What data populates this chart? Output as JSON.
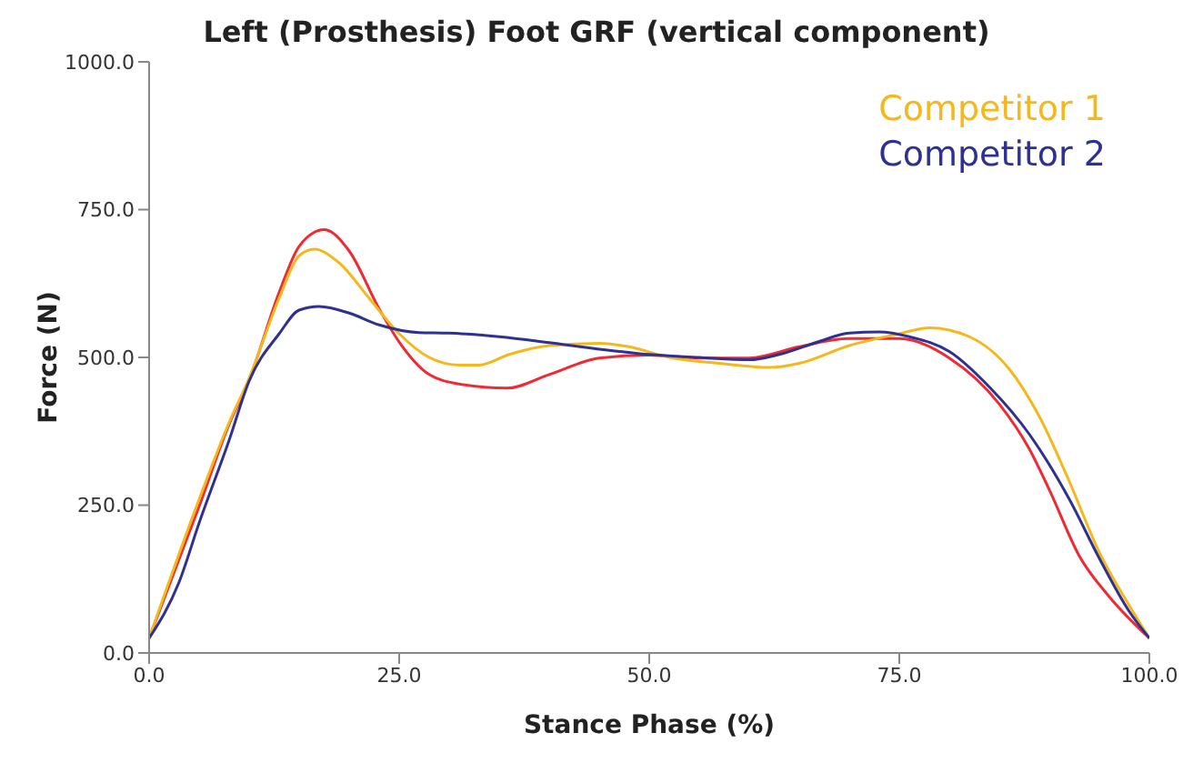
{
  "chart_data": {
    "type": "line",
    "title": "Left (Prosthesis) Foot GRF (vertical component)",
    "xlabel": "Stance Phase (%)",
    "ylabel": "Force (N)",
    "xlim": [
      0,
      100
    ],
    "ylim": [
      0,
      1000
    ],
    "xticks": [
      {
        "value": 0,
        "label": "0.0"
      },
      {
        "value": 25,
        "label": "25.0"
      },
      {
        "value": 50,
        "label": "50.0"
      },
      {
        "value": 75,
        "label": "75.0"
      },
      {
        "value": 100,
        "label": "100.0"
      }
    ],
    "yticks": [
      {
        "value": 0,
        "label": "0.0"
      },
      {
        "value": 250,
        "label": "250.0"
      },
      {
        "value": 500,
        "label": "500.0"
      },
      {
        "value": 750,
        "label": "750.0"
      },
      {
        "value": 1000,
        "label": "1000.0"
      }
    ],
    "grid": false,
    "legend": "top right",
    "marker": "none",
    "line_style": "solid",
    "series": [
      {
        "color": "#ee2b34",
        "x": [
          0,
          5,
          8,
          10,
          13,
          15,
          17.5,
          20,
          23,
          25,
          28,
          31,
          35.8,
          40,
          45,
          50,
          55,
          60,
          65,
          70,
          75,
          80,
          85,
          88,
          90,
          93,
          96,
          100
        ],
        "values": [
          25,
          248,
          387,
          462,
          610,
          688,
          716,
          680,
          582,
          526,
          471,
          455,
          448,
          471,
          499,
          504,
          499,
          499,
          518,
          532,
          532,
          499,
          421,
          345,
          276,
          164,
          95,
          25
        ]
      },
      {
        "name": "Competitor 1",
        "color": "#f5b81c",
        "x": [
          0,
          5,
          8,
          10,
          13,
          15,
          16.5,
          19,
          22,
          25,
          28,
          31,
          33,
          36,
          40,
          45,
          48,
          52,
          57,
          62,
          65,
          70,
          75,
          78,
          82,
          86,
          89,
          92,
          95,
          98,
          100
        ],
        "values": [
          25,
          260,
          390,
          465,
          600,
          672,
          683,
          660,
          600,
          540,
          500,
          487,
          487,
          505,
          520,
          524,
          518,
          500,
          490,
          483,
          490,
          520,
          540,
          550,
          535,
          480,
          400,
          290,
          170,
          80,
          25
        ]
      },
      {
        "name": "Competitor 2",
        "color": "#2e3192",
        "x": [
          0,
          3,
          5,
          8,
          10,
          13,
          15,
          17,
          20,
          23,
          27,
          30,
          35,
          40,
          45,
          50,
          55,
          60,
          63,
          67,
          70,
          73,
          76,
          80,
          84,
          88,
          92,
          95,
          98,
          100
        ],
        "values": [
          25,
          120,
          220,
          360,
          460,
          540,
          580,
          586,
          575,
          555,
          542,
          541,
          535,
          525,
          514,
          505,
          500,
          496,
          505,
          527,
          541,
          543,
          535,
          510,
          450,
          370,
          260,
          160,
          70,
          25
        ]
      }
    ]
  }
}
